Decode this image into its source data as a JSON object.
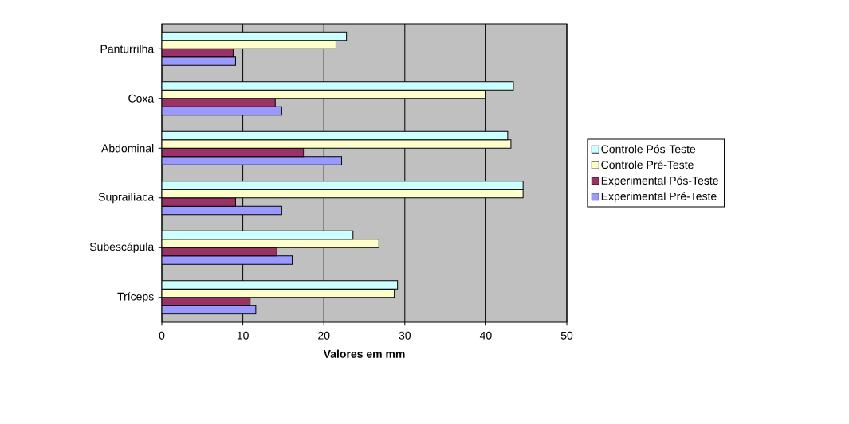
{
  "chart_data": {
    "type": "bar",
    "orientation": "horizontal",
    "xlabel": "Valores em mm",
    "categories": [
      "Panturrilha",
      "Coxa",
      "Abdominal",
      "Suprailíaca",
      "Subescápula",
      "Tríceps"
    ],
    "series": [
      {
        "name": "Controle Pós-Teste",
        "color": "#ccffff",
        "values": [
          22.8,
          43.4,
          42.7,
          44.6,
          23.6,
          29.1
        ]
      },
      {
        "name": "Controle Pré-Teste",
        "color": "#ffffcc",
        "values": [
          21.5,
          40.0,
          43.1,
          44.6,
          26.8,
          28.7
        ]
      },
      {
        "name": "Experimental Pós-Teste",
        "color": "#993366",
        "values": [
          8.8,
          14.0,
          17.5,
          9.1,
          14.2,
          10.9
        ]
      },
      {
        "name": "Experimental Pré-Teste",
        "color": "#9999ff",
        "values": [
          9.1,
          14.8,
          22.2,
          14.8,
          16.1,
          11.6
        ]
      }
    ],
    "xlim": [
      0,
      50
    ],
    "xticks": [
      0,
      10,
      20,
      30,
      40,
      50
    ],
    "grid": "x",
    "legend": "right"
  }
}
